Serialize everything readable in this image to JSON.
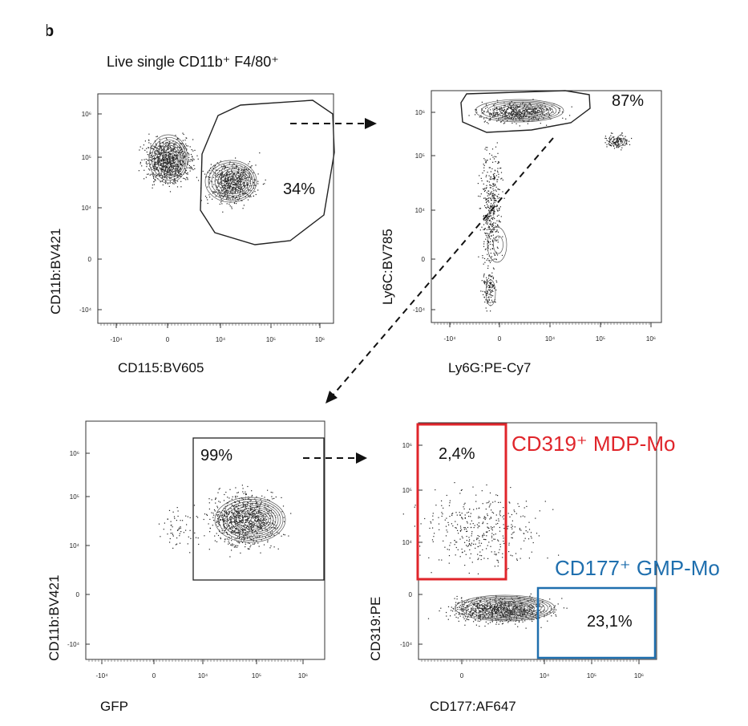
{
  "figure": {
    "panel_mark": "b",
    "header": "Live single CD11b⁺ F4/80⁺"
  },
  "chart_data": [
    {
      "type": "scatter",
      "id": "p1",
      "xlabel": "CD115:BV605",
      "ylabel": "CD11b:BV421",
      "x_ticks": [
        "-10⁴",
        "0",
        "10⁴",
        "10⁵",
        "10⁶"
      ],
      "y_ticks": [
        "10⁶",
        "10⁵",
        "10⁴",
        "0",
        "-10⁴"
      ],
      "gates": [
        {
          "shape": "polygon",
          "label": "34%",
          "value": 34
        }
      ],
      "populations": [
        {
          "center": [
            "0",
            "10⁵"
          ]
        },
        {
          "center": [
            "10⁴",
            "10^4.5"
          ]
        }
      ]
    },
    {
      "type": "scatter",
      "id": "p2",
      "xlabel": "Ly6G:PE-Cy7",
      "ylabel": "Ly6C:BV785",
      "x_ticks": [
        "-10⁴",
        "0",
        "10⁴",
        "10⁵",
        "10⁶"
      ],
      "y_ticks": [
        "10⁶",
        "10⁵",
        "10⁴",
        "0",
        "-10⁴"
      ],
      "gates": [
        {
          "shape": "polygon",
          "label": "87%",
          "value": 87
        }
      ]
    },
    {
      "type": "scatter",
      "id": "p3",
      "xlabel": "GFP",
      "ylabel": "CD11b:BV421",
      "x_ticks": [
        "-10⁴",
        "0",
        "10⁴",
        "10⁵",
        "10⁶"
      ],
      "y_ticks": [
        "10⁶",
        "10⁵",
        "10⁴",
        "0",
        "-10⁴"
      ],
      "gates": [
        {
          "shape": "rectangle",
          "label": "99%",
          "value": 99
        }
      ]
    },
    {
      "type": "scatter",
      "id": "p4",
      "xlabel": "CD177:AF647",
      "ylabel": "CD319:PE",
      "x_ticks": [
        "0",
        "10⁴",
        "10⁵",
        "10⁶"
      ],
      "y_ticks": [
        "10⁶",
        "10⁵",
        "10⁴",
        "0",
        "-10⁴"
      ],
      "gates": [
        {
          "shape": "rectangle",
          "label": "2,4%",
          "value": 2.4,
          "name": "CD319⁺ MDP-Mo",
          "color": "#e0252b"
        },
        {
          "shape": "rectangle",
          "label": "23,1%",
          "value": 23.1,
          "name": "CD177⁺ GMP-Mo",
          "color": "#1f6fae"
        }
      ]
    }
  ],
  "colors": {
    "red": "#e0252b",
    "blue": "#1f6fae",
    "ink": "#111111"
  }
}
